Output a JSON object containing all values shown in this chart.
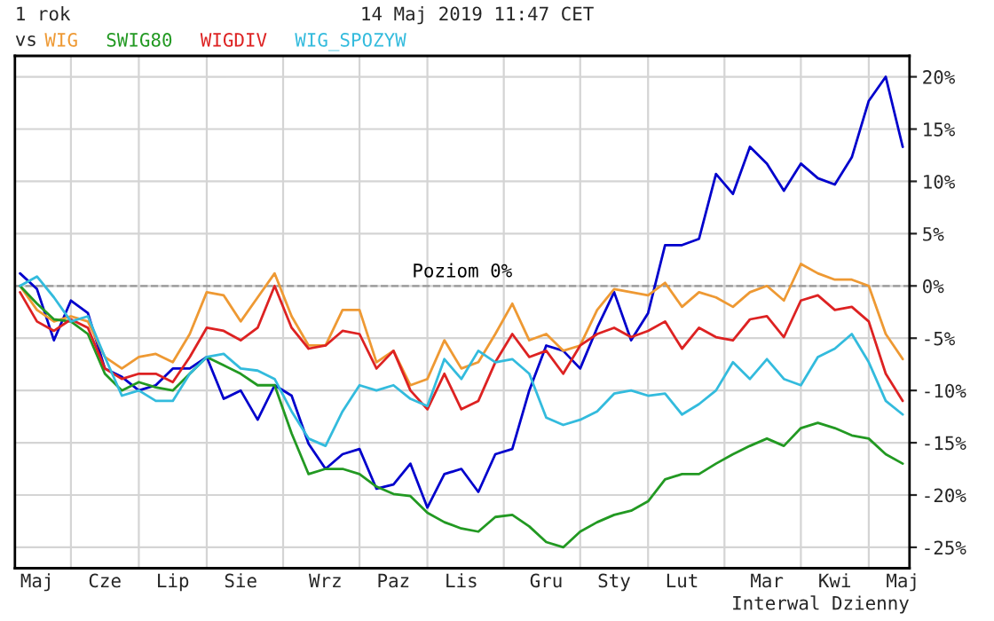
{
  "chart_data": {
    "type": "line",
    "title": "1 rok",
    "legend_title": "vs",
    "legend": "top left",
    "grid": true,
    "annotations": [
      "14 Maj 2019 11:47 CET",
      "Interwal Dzienny"
    ],
    "categories": [
      null,
      "Maj",
      null,
      null,
      null,
      "Cze",
      null,
      null,
      null,
      "Lip",
      null,
      null,
      null,
      "Sie",
      null,
      null,
      null,
      null,
      "Wrz",
      null,
      null,
      null,
      "Paz",
      null,
      null,
      null,
      "Lis",
      null,
      null,
      null,
      null,
      "Gru",
      null,
      null,
      null,
      "Sty",
      null,
      null,
      null,
      "Lut",
      null,
      null,
      null,
      null,
      "Mar",
      null,
      null,
      null,
      "Kwi",
      null,
      null,
      null,
      "Maj"
    ],
    "series": [
      {
        "color": "#0000cc",
        "values": [
          1.2,
          -0.3,
          -5.2,
          -1.4,
          -2.6,
          -7.9,
          -8.7,
          -10.0,
          -9.5,
          -7.9,
          -7.9,
          -6.8,
          -10.8,
          -10.0,
          -12.8,
          -9.5,
          -10.5,
          -15.1,
          -17.5,
          -16.1,
          -15.6,
          -19.4,
          -19.0,
          -17.0,
          -21.2,
          -18.0,
          -17.5,
          -19.7,
          -16.1,
          -15.6,
          -10.0,
          -5.7,
          -6.2,
          -7.9,
          -4.0,
          -0.6,
          -5.2,
          -2.6,
          3.9,
          3.9,
          4.5,
          10.7,
          8.8,
          13.3,
          11.7,
          9.1,
          11.7,
          10.3,
          9.7,
          12.3,
          17.7,
          20.0,
          13.3
        ]
      },
      {
        "name": "WIG",
        "color": "#ee9933",
        "values": [
          0.0,
          -2.3,
          -3.4,
          -2.9,
          -3.4,
          -6.8,
          -7.9,
          -6.8,
          -6.5,
          -7.3,
          -4.6,
          -0.6,
          -0.9,
          -3.4,
          -1.1,
          1.2,
          -2.9,
          -5.7,
          -5.7,
          -2.3,
          -2.3,
          -7.3,
          -6.2,
          -9.5,
          -8.9,
          -5.2,
          -7.9,
          -7.3,
          -4.6,
          -1.7,
          -5.2,
          -4.6,
          -6.2,
          -5.7,
          -2.3,
          -0.3,
          -0.6,
          -0.9,
          0.3,
          -2.0,
          -0.6,
          -1.1,
          -2.0,
          -0.6,
          0.0,
          -1.4,
          2.1,
          1.2,
          0.6,
          0.6,
          0.0,
          -4.6,
          -7.0
        ]
      },
      {
        "name": "SWIG80",
        "color": "#229922",
        "values": [
          0.0,
          -1.7,
          -3.2,
          -3.4,
          -4.6,
          -8.4,
          -10.0,
          -9.2,
          -9.7,
          -10.0,
          -8.4,
          -6.8,
          -7.6,
          -8.4,
          -9.5,
          -9.5,
          -14.1,
          -18.0,
          -17.5,
          -17.5,
          -18.0,
          -19.2,
          -19.9,
          -20.1,
          -21.7,
          -22.6,
          -23.2,
          -23.5,
          -22.1,
          -21.9,
          -23.0,
          -24.5,
          -25.0,
          -23.5,
          -22.6,
          -21.9,
          -21.5,
          -20.6,
          -18.5,
          -18.0,
          -18.0,
          -17.0,
          -16.1,
          -15.3,
          -14.6,
          -15.3,
          -13.6,
          -13.1,
          -13.6,
          -14.3,
          -14.6,
          -16.1,
          -17.0
        ]
      },
      {
        "name": "WIGDIV",
        "color": "#dd2222",
        "values": [
          -0.6,
          -3.4,
          -4.3,
          -3.2,
          -4.0,
          -7.9,
          -8.9,
          -8.4,
          -8.4,
          -9.2,
          -6.8,
          -4.0,
          -4.3,
          -5.2,
          -4.0,
          0.0,
          -4.0,
          -6.0,
          -5.7,
          -4.3,
          -4.6,
          -7.9,
          -6.2,
          -10.0,
          -11.8,
          -8.4,
          -11.8,
          -11.0,
          -7.3,
          -4.6,
          -6.8,
          -6.2,
          -8.4,
          -5.7,
          -4.6,
          -4.0,
          -4.9,
          -4.3,
          -3.4,
          -6.0,
          -4.0,
          -4.9,
          -5.2,
          -3.2,
          -2.9,
          -4.9,
          -1.4,
          -0.9,
          -2.3,
          -2.0,
          -3.4,
          -8.4,
          -11.0
        ]
      },
      {
        "name": "WIG_SPOZYW",
        "color": "#33bbdd",
        "values": [
          0.0,
          0.9,
          -1.1,
          -3.4,
          -2.9,
          -6.8,
          -10.5,
          -10.0,
          -11.0,
          -11.0,
          -8.4,
          -6.8,
          -6.5,
          -7.9,
          -8.1,
          -8.9,
          -12.0,
          -14.6,
          -15.3,
          -12.0,
          -9.5,
          -10.0,
          -9.5,
          -10.8,
          -11.5,
          -7.0,
          -8.9,
          -6.2,
          -7.3,
          -7.0,
          -8.4,
          -12.6,
          -13.3,
          -12.8,
          -12.0,
          -10.3,
          -10.0,
          -10.5,
          -10.3,
          -12.3,
          -11.3,
          -10.0,
          -7.3,
          -8.9,
          -7.0,
          -8.9,
          -9.5,
          -6.8,
          -6.0,
          -4.6,
          -7.3,
          -11.0,
          -12.3
        ]
      }
    ],
    "ylim": [
      -27,
      22
    ],
    "yticks": [
      {
        "value": 20,
        "label": "20%"
      },
      {
        "value": 15,
        "label": "15%"
      },
      {
        "value": 10,
        "label": "10%"
      },
      {
        "value": 5,
        "label": "5%"
      },
      {
        "value": 0,
        "label": "0%"
      },
      {
        "value": -5,
        "label": "-5%"
      },
      {
        "value": -10,
        "label": "-10%"
      },
      {
        "value": -15,
        "label": "-15%"
      },
      {
        "value": -20,
        "label": "-20%"
      },
      {
        "value": -25,
        "label": "-25%"
      }
    ],
    "ref_lines": [
      {
        "axis": "y",
        "value": 0,
        "label": "Poziom 0%",
        "color": "#999999",
        "line_style": "dashed"
      }
    ]
  }
}
